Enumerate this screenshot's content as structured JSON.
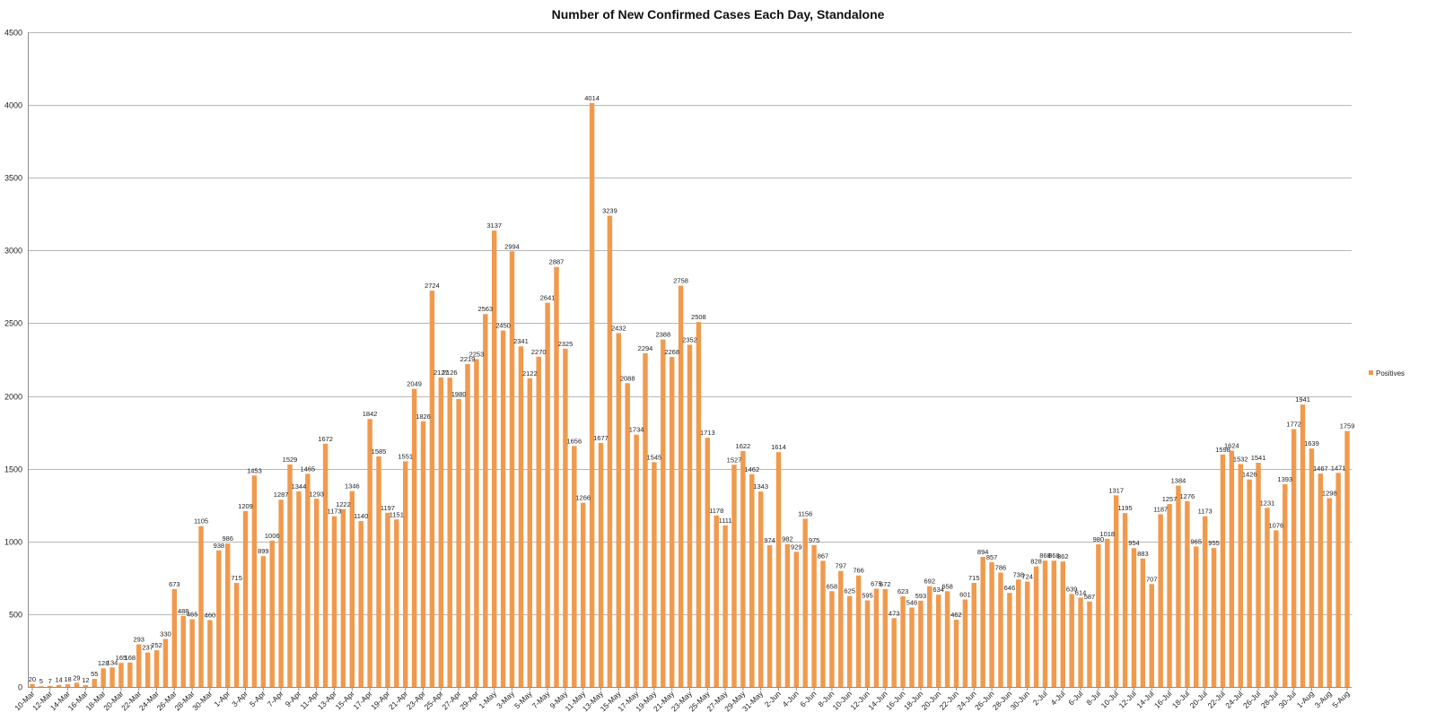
{
  "chart_data": {
    "type": "bar",
    "title": "Number of New Confirmed Cases Each Day, Standalone",
    "xlabel": "",
    "ylabel": "",
    "ylim": [
      0,
      4500
    ],
    "yticks": [
      0,
      500,
      1000,
      1500,
      2000,
      2500,
      3000,
      3500,
      4000,
      4500
    ],
    "grid": true,
    "legend_position": "right",
    "series": [
      {
        "name": "Positives",
        "color": "#F09A4E",
        "values": [
          20,
          5,
          7,
          14,
          18,
          29,
          12,
          55,
          128,
          134,
          165,
          168,
          293,
          237,
          252,
          330,
          673,
          488,
          465,
          1105,
          460,
          938,
          986,
          715,
          1209,
          1453,
          899,
          1006,
          1287,
          1529,
          1344,
          1465,
          1293,
          1672,
          1173,
          1222,
          1346,
          1140,
          1842,
          1585,
          1197,
          1151,
          1551,
          2049,
          1826,
          2724,
          2127,
          2126,
          1980,
          2219,
          2253,
          2563,
          3137,
          2450,
          2994,
          2341,
          2122,
          2270,
          2641,
          2887,
          2325,
          1656,
          1266,
          4014,
          1677,
          3239,
          2432,
          2088,
          1734,
          2294,
          1545,
          2388,
          2268,
          2758,
          2352,
          2508,
          1713,
          1178,
          1111,
          1527,
          1622,
          1462,
          1343,
          974,
          1614,
          982,
          929,
          1156,
          975,
          867,
          658,
          797,
          625,
          766,
          595,
          675,
          672,
          473,
          623,
          546,
          593,
          692,
          634,
          658,
          462,
          601,
          715,
          894,
          857,
          786,
          646,
          738,
          724,
          828,
          868,
          868,
          862,
          639,
          614,
          587,
          980,
          1018,
          1317,
          1195,
          954,
          883,
          707,
          1187,
          1257,
          1384,
          1276,
          965,
          1173,
          955,
          1598,
          1624,
          1532,
          1426,
          1541,
          1231,
          1076,
          1393,
          1772,
          1941,
          1639,
          1467,
          1298,
          1471,
          1759
        ]
      }
    ],
    "x_tick_labels": [
      "10-Mar",
      "12-Mar",
      "14-Mar",
      "16-Mar",
      "18-Mar",
      "20-Mar",
      "22-Mar",
      "24-Mar",
      "26-Mar",
      "28-Mar",
      "30-Mar",
      "1-Apr",
      "3-Apr",
      "5-Apr",
      "7-Apr",
      "9-Apr",
      "11-Apr",
      "13-Apr",
      "15-Apr",
      "17-Apr",
      "19-Apr",
      "21-Apr",
      "23-Apr",
      "25-Apr",
      "27-Apr",
      "29-Apr",
      "1-May",
      "3-May",
      "5-May",
      "7-May",
      "9-May",
      "11-May",
      "13-May",
      "15-May",
      "17-May",
      "19-May",
      "21-May",
      "23-May",
      "25-May",
      "27-May",
      "29-May",
      "31-May",
      "2-Jun",
      "4-Jun",
      "6-Jun",
      "8-Jun",
      "10-Jun",
      "12-Jun",
      "14-Jun",
      "16-Jun",
      "18-Jun",
      "20-Jun",
      "22-Jun",
      "24-Jun",
      "26-Jun",
      "28-Jun",
      "30-Jun",
      "2-Jul",
      "4-Jul",
      "6-Jul",
      "8-Jul",
      "10-Jul",
      "12-Jul",
      "14-Jul",
      "16-Jul",
      "18-Jul",
      "20-Jul",
      "22-Jul",
      "24-Jul",
      "26-Jul",
      "28-Jul",
      "30-Jul",
      "1-Aug",
      "3-Aug",
      "5-Aug"
    ]
  }
}
